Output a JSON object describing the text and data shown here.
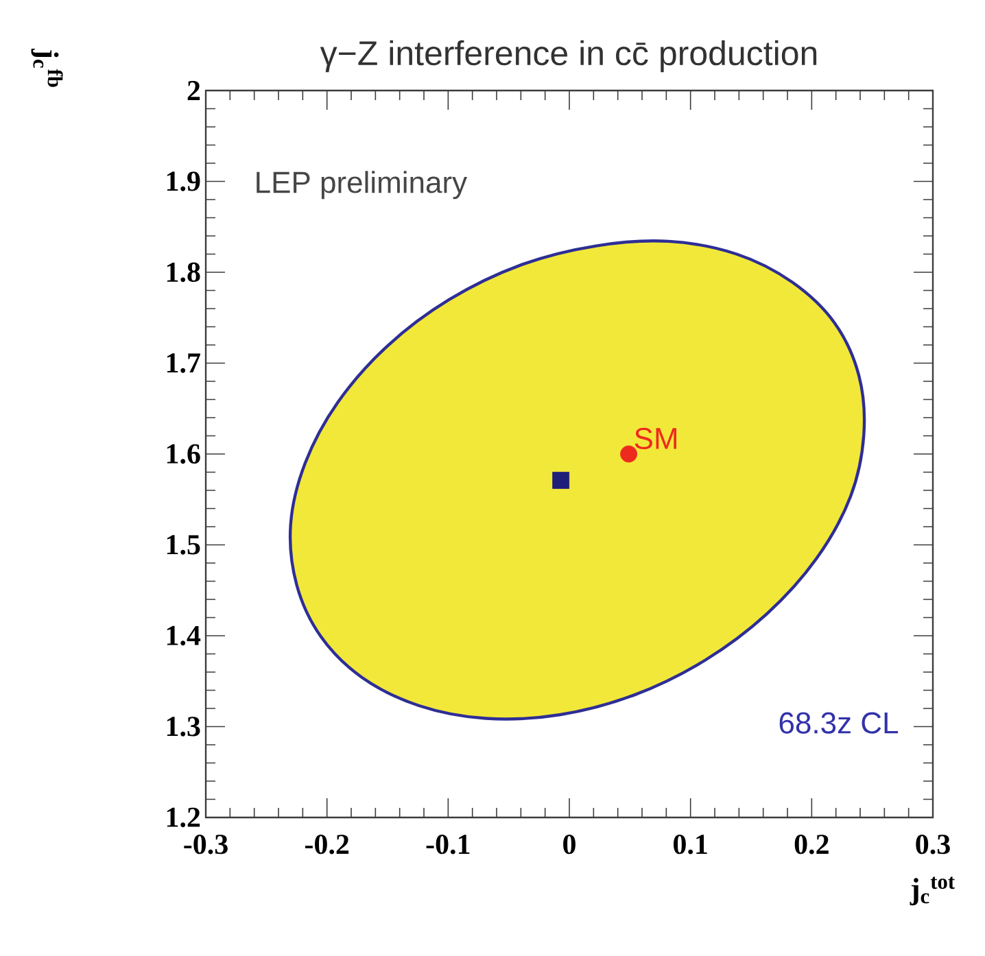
{
  "chart_data": {
    "type": "scatter",
    "title": "γ−Z interference in cc̄ production",
    "xlabel": "j$_{c}$$^{tot}$",
    "ylabel": "j$_{c}$$^{fb}$",
    "xlim": [
      -0.3,
      0.3
    ],
    "xticks": [
      -0.3,
      -0.2,
      -0.1,
      0,
      0.1,
      0.2,
      0.3
    ],
    "ylim": [
      1.2,
      2
    ],
    "yticks": [
      1.2,
      1.3,
      1.4,
      1.5,
      1.6,
      1.7,
      1.8,
      1.9,
      2
    ],
    "grid": false,
    "legend": false,
    "annotations": [
      "LEP preliminary",
      "68.3z CL"
    ],
    "series": [
      {
        "type": "area",
        "color": "#f2e83a",
        "x": [
          0.243,
          0.239,
          0.219,
          0.184,
          0.138,
          0.082,
          0.022,
          -0.04,
          -0.099,
          -0.15,
          -0.191,
          -0.218,
          -0.23,
          -0.225,
          -0.205,
          -0.171,
          -0.124,
          -0.069,
          -0.008,
          0.054,
          0.112,
          0.163,
          0.204,
          0.232
        ],
        "values": [
          1.621,
          1.686,
          1.744,
          1.789,
          1.82,
          1.834,
          1.829,
          1.808,
          1.77,
          1.719,
          1.657,
          1.59,
          1.522,
          1.456,
          1.399,
          1.354,
          1.323,
          1.309,
          1.313,
          1.335,
          1.373,
          1.424,
          1.485,
          1.553
        ]
      },
      {
        "color": "#1f1f7a",
        "marker": "square",
        "x": [
          -0.007
        ],
        "values": [
          1.571
        ]
      },
      {
        "name": "SM",
        "color": "#ee2a1e",
        "marker": "circle",
        "x": [
          0.049
        ],
        "values": [
          1.6
        ]
      }
    ]
  }
}
